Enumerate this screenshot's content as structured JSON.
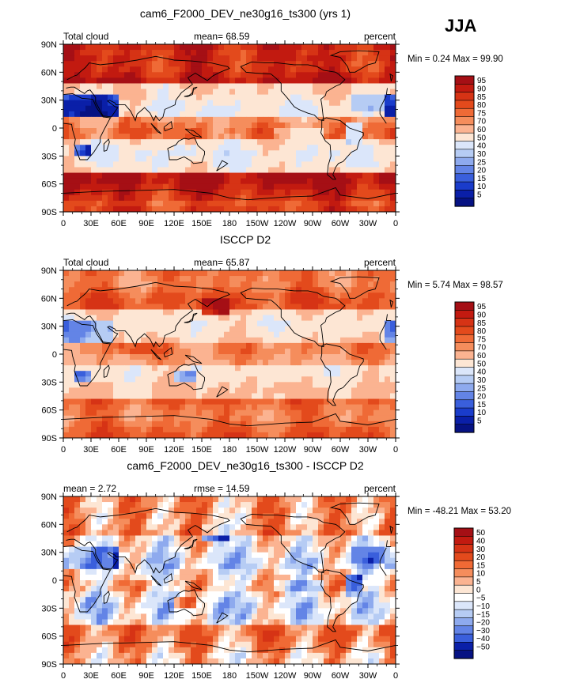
{
  "season": "JJA",
  "chart_data": [
    {
      "type": "heatmap",
      "title": "cam6_F2000_DEV_ne30g16_ts300 (yrs 1)",
      "left_label": "Total cloud",
      "center_label": "mean=   68.59",
      "right_label": "percent",
      "stats": "Min =    0.24 Max =   99.90",
      "mean": 68.59,
      "min": 0.24,
      "max": 99.9,
      "lat_ticks": [
        "90N",
        "60N",
        "30N",
        "0",
        "30S",
        "60S",
        "90S"
      ],
      "lon_ticks": [
        "0",
        "30E",
        "60E",
        "90E",
        "120E",
        "150E",
        "180",
        "150W",
        "120W",
        "90W",
        "60W",
        "30W",
        "0"
      ],
      "colorbar_levels": [
        "95",
        "90",
        "85",
        "80",
        "75",
        "70",
        "60",
        "50",
        "40",
        "30",
        "25",
        "20",
        "15",
        "10",
        "5"
      ],
      "colorbar_colors": [
        "#a50f15",
        "#c21a10",
        "#d63315",
        "#e34a1c",
        "#ef6a36",
        "#f58d5c",
        "#fbb391",
        "#fde6d4",
        "#dbe6fa",
        "#b6ccf4",
        "#8eaaee",
        "#6384e6",
        "#3a5fdc",
        "#1a3ccb",
        "#0a1fa8",
        "#061283"
      ]
    },
    {
      "type": "heatmap",
      "title": "ISCCP D2",
      "left_label": "Total cloud",
      "center_label": "mean=   65.87",
      "right_label": "percent",
      "stats": "Min =    5.74 Max =   98.57",
      "mean": 65.87,
      "min": 5.74,
      "max": 98.57,
      "lat_ticks": [
        "90N",
        "60N",
        "30N",
        "0",
        "30S",
        "60S",
        "90S"
      ],
      "lon_ticks": [
        "0",
        "30E",
        "60E",
        "90E",
        "120E",
        "150E",
        "180",
        "150W",
        "120W",
        "90W",
        "60W",
        "30W",
        "0"
      ],
      "colorbar_levels": [
        "95",
        "90",
        "85",
        "80",
        "75",
        "70",
        "60",
        "50",
        "40",
        "30",
        "25",
        "20",
        "15",
        "10",
        "5"
      ],
      "colorbar_colors": [
        "#a50f15",
        "#c21a10",
        "#d63315",
        "#e34a1c",
        "#ef6a36",
        "#f58d5c",
        "#fbb391",
        "#fde6d4",
        "#dbe6fa",
        "#b6ccf4",
        "#8eaaee",
        "#6384e6",
        "#3a5fdc",
        "#1a3ccb",
        "#0a1fa8",
        "#061283"
      ]
    },
    {
      "type": "heatmap",
      "title": "cam6_F2000_DEV_ne30g16_ts300 - ISCCP D2",
      "left_label": "mean =    2.72",
      "center_label": "rmse =   14.59",
      "right_label": "percent",
      "stats": "Min = -48.21 Max =   53.20",
      "mean": 2.72,
      "rmse": 14.59,
      "min": -48.21,
      "max": 53.2,
      "lat_ticks": [
        "90N",
        "60N",
        "30N",
        "0",
        "30S",
        "60S",
        "90S"
      ],
      "lon_ticks": [
        "0",
        "30E",
        "60E",
        "90E",
        "120E",
        "150E",
        "180",
        "150W",
        "120W",
        "90W",
        "60W",
        "30W",
        "0"
      ],
      "colorbar_levels": [
        "50",
        "40",
        "30",
        "20",
        "15",
        "10",
        "5",
        "0",
        "−5",
        "−10",
        "−15",
        "−20",
        "−30",
        "−40",
        "−50"
      ],
      "colorbar_colors": [
        "#a50f15",
        "#c21a10",
        "#d63315",
        "#e34a1c",
        "#f06a35",
        "#f58d5c",
        "#fbb391",
        "#fde6d4",
        "#ffffff",
        "#dbe6fa",
        "#b6ccf4",
        "#8eaaee",
        "#6384e6",
        "#3a5fdc",
        "#0a1fa8",
        "#061283"
      ]
    }
  ]
}
